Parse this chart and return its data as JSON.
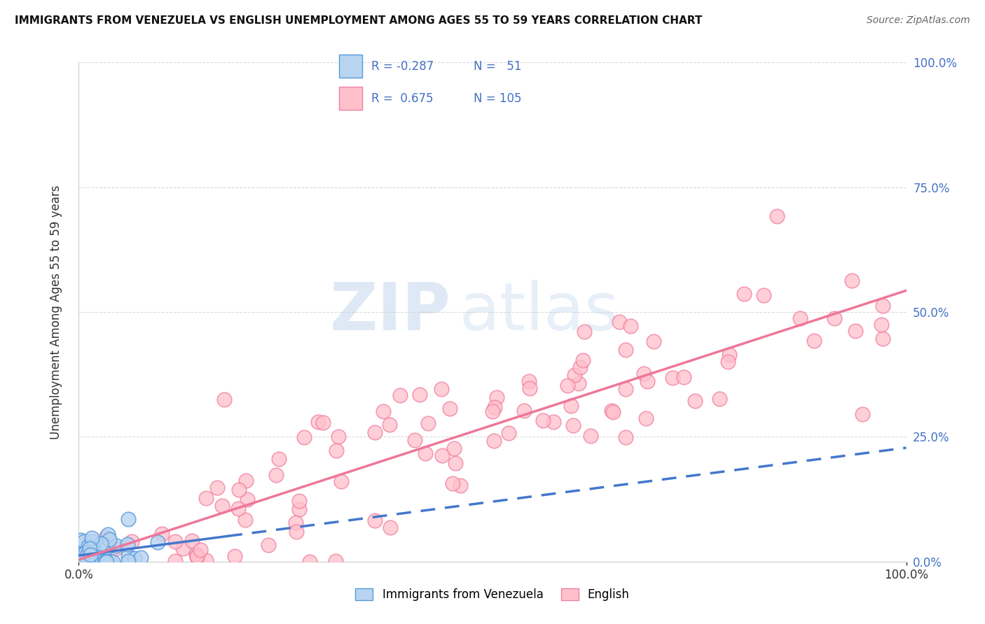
{
  "title": "IMMIGRANTS FROM VENEZUELA VS ENGLISH UNEMPLOYMENT AMONG AGES 55 TO 59 YEARS CORRELATION CHART",
  "source": "Source: ZipAtlas.com",
  "ylabel": "Unemployment Among Ages 55 to 59 years",
  "legend_label1": "Immigrants from Venezuela",
  "legend_label2": "English",
  "R1": -0.287,
  "N1": 51,
  "R2": 0.675,
  "N2": 105,
  "color_blue_face": "#b8d4f0",
  "color_blue_edge": "#5599dd",
  "color_pink_face": "#ffc0cb",
  "color_pink_edge": "#f080a0",
  "color_blue_line": "#4477cc",
  "color_pink_line": "#ee7799",
  "color_text_blue": "#4472c4",
  "watermark_color": "#c5d8ee",
  "background_color": "#ffffff",
  "grid_color": "#cccccc"
}
